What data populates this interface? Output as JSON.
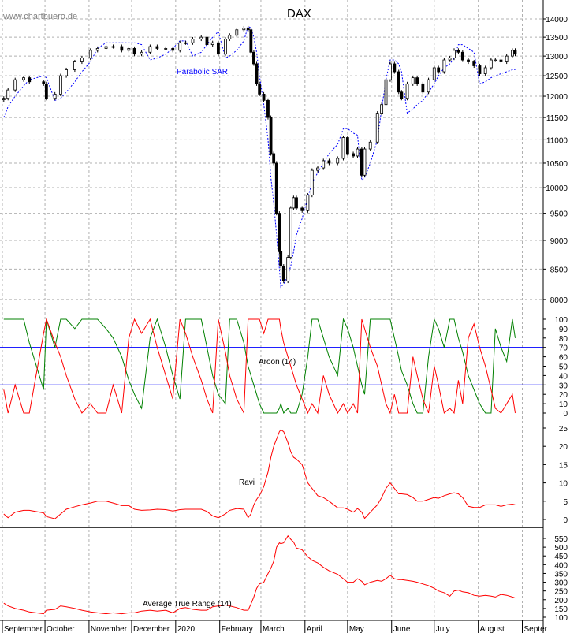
{
  "chart_data": {
    "type": "candlestick-with-indicators",
    "title": "DAX",
    "watermark": "www.chartbuero.de",
    "xlim": [
      "2019-09-01",
      "2020-09-01"
    ],
    "x_tick_labels": [
      "September",
      "October",
      "November",
      "December",
      "2020",
      "February",
      "March",
      "April",
      "May",
      "June",
      "July",
      "August",
      "Septer"
    ],
    "x_tick_dates": [
      "2019-09-01",
      "2019-10-01",
      "2019-11-01",
      "2019-12-01",
      "2020-01-01",
      "2020-02-01",
      "2020-03-01",
      "2020-04-01",
      "2020-05-01",
      "2020-06-01",
      "2020-07-01",
      "2020-08-01",
      "2020-09-01"
    ],
    "grid": true,
    "panels": {
      "price": {
        "scale": "log",
        "ylim": [
          8000,
          14000
        ],
        "ticks": [
          8000,
          8500,
          9000,
          9500,
          10000,
          10500,
          11000,
          11500,
          12000,
          12500,
          13000,
          13500,
          14000
        ],
        "overlay_label": "Parabolic SAR"
      },
      "aroon": {
        "label": "Aroon (14)",
        "ylim": [
          0,
          100
        ],
        "ticks": [
          0,
          10,
          20,
          30,
          40,
          50,
          60,
          70,
          80,
          90,
          100
        ],
        "reference_lines": [
          70,
          30
        ]
      },
      "ravi": {
        "label": "Ravi",
        "ylim": [
          0,
          25
        ],
        "ticks": [
          0,
          5,
          10,
          15,
          20,
          25
        ]
      },
      "atr": {
        "label": "Average True Range (14)",
        "ylim": [
          100,
          550
        ],
        "ticks": [
          100,
          150,
          200,
          250,
          300,
          350,
          400,
          450,
          500,
          550
        ]
      }
    },
    "colors": {
      "sar": "#0000ff",
      "aroon_up": "#008000",
      "aroon_down": "#ff0000",
      "reference": "#0000ff",
      "ravi": "#ff0000",
      "atr": "#ff0000",
      "candle_up": "#ffffff",
      "candle_down": "#000000"
    },
    "columns": [
      "date",
      "close",
      "sar",
      "aroon_up",
      "aroon_down",
      "ravi",
      "atr"
    ],
    "rows": [
      [
        "2019-09-02",
        11950,
        11500,
        100,
        25,
        1.5,
        180
      ],
      [
        "2019-09-05",
        12150,
        11750,
        100,
        0,
        0.5,
        165
      ],
      [
        "2019-09-10",
        12400,
        12000,
        100,
        30,
        2,
        150
      ],
      [
        "2019-09-16",
        12450,
        12250,
        100,
        0,
        2.5,
        140
      ],
      [
        "2019-09-20",
        12350,
        12400,
        75,
        0,
        2.5,
        130
      ],
      [
        "2019-09-30",
        12300,
        12500,
        25,
        85,
        1.8,
        120
      ],
      [
        "2019-10-02",
        11950,
        12450,
        100,
        100,
        0.8,
        140
      ],
      [
        "2019-10-08",
        12050,
        11900,
        70,
        75,
        0.2,
        145
      ],
      [
        "2019-10-12",
        12500,
        11950,
        100,
        60,
        1.5,
        165
      ],
      [
        "2019-10-16",
        12650,
        12100,
        100,
        40,
        2.8,
        160
      ],
      [
        "2019-10-22",
        12850,
        12350,
        90,
        15,
        3.5,
        150
      ],
      [
        "2019-10-27",
        12950,
        12600,
        100,
        0,
        4,
        140
      ],
      [
        "2019-11-02",
        13150,
        12850,
        100,
        10,
        4.5,
        130
      ],
      [
        "2019-11-07",
        13200,
        13200,
        100,
        0,
        5,
        125
      ],
      [
        "2019-11-13",
        13250,
        13350,
        90,
        0,
        5,
        120
      ],
      [
        "2019-11-18",
        13250,
        13350,
        80,
        30,
        4.5,
        125
      ],
      [
        "2019-11-24",
        13150,
        13350,
        60,
        0,
        3.8,
        120
      ],
      [
        "2019-11-29",
        13200,
        13350,
        35,
        80,
        3.8,
        125
      ],
      [
        "2019-12-03",
        13050,
        13350,
        20,
        100,
        2.8,
        125
      ],
      [
        "2019-12-08",
        13100,
        13300,
        5,
        85,
        2.5,
        135
      ],
      [
        "2019-12-14",
        13250,
        12900,
        80,
        100,
        2.6,
        140
      ],
      [
        "2019-12-19",
        13200,
        12950,
        100,
        70,
        2.8,
        135
      ],
      [
        "2019-12-25",
        13200,
        13050,
        70,
        40,
        2.7,
        140
      ],
      [
        "2019-12-30",
        13150,
        13200,
        40,
        15,
        2.3,
        125
      ],
      [
        "2020-01-04",
        13350,
        13400,
        15,
        100,
        2.7,
        150
      ],
      [
        "2020-01-08",
        13350,
        13400,
        100,
        85,
        2.8,
        155
      ],
      [
        "2020-01-13",
        13450,
        13000,
        100,
        60,
        2.8,
        145
      ],
      [
        "2020-01-19",
        13500,
        13100,
        100,
        35,
        2.8,
        140
      ],
      [
        "2020-01-23",
        13300,
        13300,
        70,
        15,
        2.2,
        140
      ],
      [
        "2020-01-27",
        13350,
        13500,
        40,
        0,
        1,
        160
      ],
      [
        "2020-01-31",
        13050,
        13650,
        20,
        100,
        0.5,
        165
      ],
      [
        "2020-02-05",
        13450,
        12950,
        10,
        65,
        1.5,
        170
      ],
      [
        "2020-02-08",
        13550,
        13000,
        100,
        40,
        2.5,
        165
      ],
      [
        "2020-02-13",
        13700,
        13150,
        100,
        15,
        3,
        155
      ],
      [
        "2020-02-18",
        13750,
        13400,
        75,
        0,
        2.8,
        140
      ],
      [
        "2020-02-21",
        13700,
        13800,
        50,
        100,
        0.5,
        140
      ],
      [
        "2020-02-23",
        13100,
        13750,
        40,
        100,
        1.5,
        175
      ],
      [
        "2020-02-25",
        12800,
        13500,
        30,
        100,
        4,
        215
      ],
      [
        "2020-02-27",
        12300,
        13100,
        20,
        100,
        5.5,
        265
      ],
      [
        "2020-02-29",
        12050,
        12500,
        10,
        100,
        6.5,
        290
      ],
      [
        "2020-03-03",
        11900,
        11800,
        0,
        85,
        9,
        300
      ],
      [
        "2020-03-06",
        11500,
        11000,
        0,
        100,
        13,
        350
      ],
      [
        "2020-03-08",
        10700,
        10200,
        0,
        100,
        17,
        380
      ],
      [
        "2020-03-10",
        10500,
        9700,
        0,
        100,
        20,
        420
      ],
      [
        "2020-03-12",
        9500,
        9100,
        0,
        100,
        22,
        500
      ],
      [
        "2020-03-14",
        8800,
        8500,
        5,
        100,
        24,
        525
      ],
      [
        "2020-03-15",
        8550,
        8200,
        10,
        90,
        24.5,
        520
      ],
      [
        "2020-03-17",
        8300,
        8250,
        0,
        75,
        24,
        525
      ],
      [
        "2020-03-20",
        8700,
        8400,
        5,
        60,
        21,
        565
      ],
      [
        "2020-03-22",
        9600,
        8550,
        0,
        50,
        18.5,
        545
      ],
      [
        "2020-03-24",
        9800,
        8800,
        0,
        40,
        17,
        530
      ],
      [
        "2020-03-26",
        9600,
        9100,
        0,
        30,
        16.5,
        495
      ],
      [
        "2020-03-30",
        9550,
        9400,
        20,
        15,
        15,
        485
      ],
      [
        "2020-04-03",
        9850,
        9800,
        60,
        0,
        10,
        445
      ],
      [
        "2020-04-06",
        10350,
        10100,
        100,
        10,
        8.5,
        425
      ],
      [
        "2020-04-10",
        10400,
        10300,
        100,
        0,
        6.5,
        410
      ],
      [
        "2020-04-14",
        10550,
        10500,
        80,
        40,
        6,
        385
      ],
      [
        "2020-04-18",
        10500,
        10700,
        60,
        20,
        5,
        365
      ],
      [
        "2020-04-24",
        10600,
        10900,
        40,
        0,
        3.2,
        345
      ],
      [
        "2020-04-28",
        11050,
        11250,
        100,
        10,
        3.2,
        320
      ],
      [
        "2020-05-01",
        10700,
        11250,
        90,
        0,
        2.8,
        300
      ],
      [
        "2020-05-05",
        10650,
        11150,
        70,
        10,
        2,
        300
      ],
      [
        "2020-05-08",
        10800,
        11100,
        50,
        0,
        3,
        320
      ],
      [
        "2020-05-11",
        10250,
        10150,
        30,
        100,
        2,
        305
      ],
      [
        "2020-05-13",
        10800,
        10200,
        20,
        90,
        0.3,
        285
      ],
      [
        "2020-05-17",
        10950,
        10500,
        100,
        70,
        2,
        300
      ],
      [
        "2020-05-22",
        11600,
        11000,
        100,
        50,
        4,
        310
      ],
      [
        "2020-05-25",
        11800,
        11700,
        100,
        30,
        6,
        305
      ],
      [
        "2020-05-28",
        12400,
        12400,
        100,
        10,
        8.5,
        320
      ],
      [
        "2020-05-31",
        12800,
        12900,
        100,
        0,
        10,
        340
      ],
      [
        "2020-06-03",
        12600,
        12900,
        80,
        20,
        8.5,
        320
      ],
      [
        "2020-06-06",
        12100,
        12800,
        60,
        0,
        7,
        315
      ],
      [
        "2020-06-08",
        11950,
        12600,
        45,
        0,
        7,
        315
      ],
      [
        "2020-06-12",
        12300,
        11600,
        30,
        0,
        6.8,
        310
      ],
      [
        "2020-06-16",
        12450,
        11700,
        10,
        60,
        6,
        305
      ],
      [
        "2020-06-19",
        12300,
        11800,
        0,
        40,
        5,
        300
      ],
      [
        "2020-06-23",
        12100,
        11900,
        0,
        15,
        5,
        290
      ],
      [
        "2020-06-27",
        12400,
        12100,
        60,
        0,
        5.5,
        280
      ],
      [
        "2020-07-01",
        12700,
        12300,
        100,
        50,
        6,
        265
      ],
      [
        "2020-07-04",
        12600,
        12500,
        90,
        30,
        5.8,
        250
      ],
      [
        "2020-07-08",
        12900,
        12700,
        70,
        0,
        6.5,
        240
      ],
      [
        "2020-07-12",
        12950,
        12800,
        100,
        5,
        7,
        220
      ],
      [
        "2020-07-15",
        13150,
        12950,
        100,
        0,
        7.3,
        250
      ],
      [
        "2020-07-18",
        13100,
        13300,
        80,
        35,
        7,
        255
      ],
      [
        "2020-07-21",
        12900,
        13300,
        65,
        10,
        6,
        245
      ],
      [
        "2020-07-25",
        12850,
        13200,
        40,
        80,
        3.6,
        240
      ],
      [
        "2020-07-29",
        12750,
        13100,
        25,
        95,
        3.3,
        225
      ],
      [
        "2020-08-02",
        12550,
        12300,
        10,
        70,
        3.3,
        220
      ],
      [
        "2020-08-06",
        12700,
        12350,
        0,
        50,
        4,
        225
      ],
      [
        "2020-08-10",
        12900,
        12450,
        0,
        25,
        4,
        220
      ],
      [
        "2020-08-13",
        12900,
        12500,
        90,
        5,
        4,
        215
      ],
      [
        "2020-08-17",
        12850,
        12550,
        70,
        0,
        3.6,
        230
      ],
      [
        "2020-08-21",
        13000,
        12600,
        55,
        10,
        4,
        225
      ],
      [
        "2020-08-25",
        13150,
        12650,
        100,
        20,
        4.2,
        215
      ],
      [
        "2020-08-27",
        13050,
        12650,
        80,
        0,
        4,
        210
      ]
    ]
  }
}
